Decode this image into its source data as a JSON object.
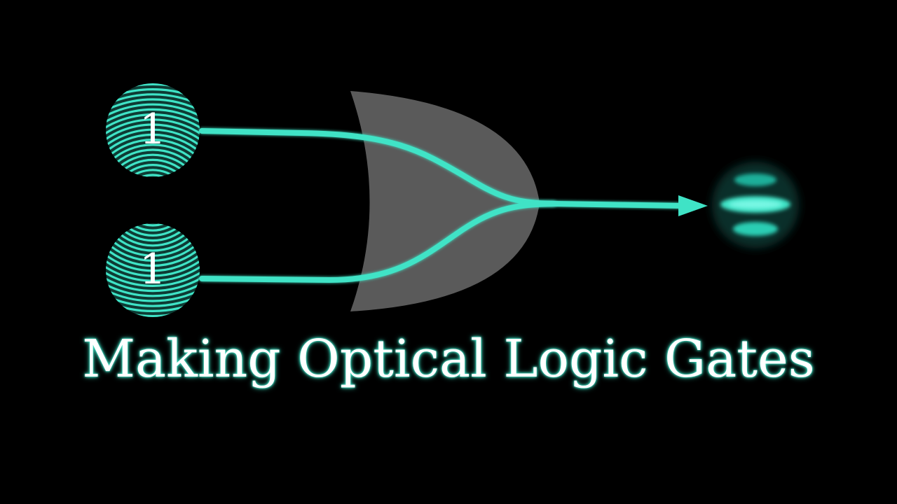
{
  "title": "Making Optical Logic Gates",
  "inputs": [
    {
      "name": "input-a",
      "value": "1"
    },
    {
      "name": "input-b",
      "value": "1"
    }
  ],
  "gate": "OR",
  "colors": {
    "background": "#000000",
    "beam": "#3fe3c6",
    "gate_fill": "#5a5a5a",
    "text": "#ffffff"
  }
}
